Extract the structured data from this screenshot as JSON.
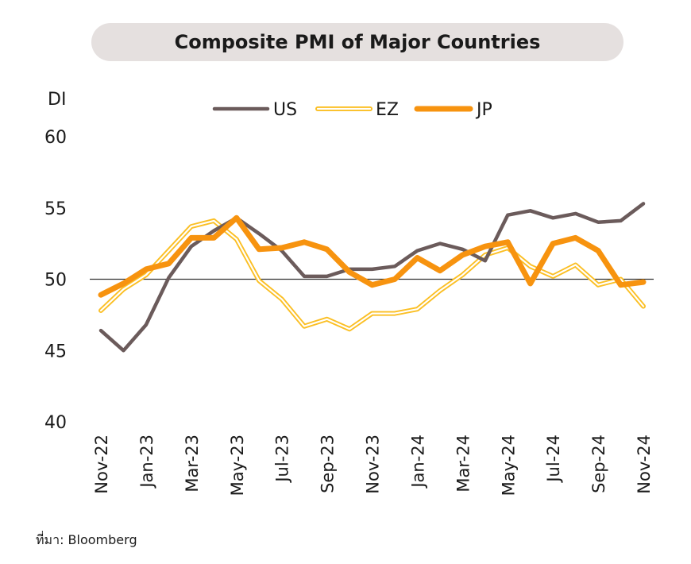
{
  "source_text": "ที่มา: Bloomberg",
  "chart_data": {
    "type": "line",
    "title": "Composite PMI of Major Countries",
    "ylabel": "DI",
    "ylim": [
      40,
      60
    ],
    "yticks": [
      40,
      45,
      50,
      55,
      60
    ],
    "reference_line": 50,
    "legend_position": "top-center",
    "x": [
      "Nov-22",
      "Dec-22",
      "Jan-23",
      "Feb-23",
      "Mar-23",
      "Apr-23",
      "May-23",
      "Jun-23",
      "Jul-23",
      "Aug-23",
      "Sep-23",
      "Oct-23",
      "Nov-23",
      "Dec-23",
      "Jan-24",
      "Feb-24",
      "Mar-24",
      "Apr-24",
      "May-24",
      "Jun-24",
      "Jul-24",
      "Aug-24",
      "Sep-24",
      "Oct-24",
      "Nov-24"
    ],
    "xtick_labels": [
      "Nov-22",
      "Jan-23",
      "Mar-23",
      "May-23",
      "Jul-23",
      "Sep-23",
      "Nov-23",
      "Jan-24",
      "Mar-24",
      "May-24",
      "Jul-24",
      "Sep-24",
      "Nov-24"
    ],
    "series": [
      {
        "name": "US",
        "color": "#6b5b5b",
        "style": "solid",
        "values": [
          46.4,
          45.0,
          46.8,
          50.1,
          52.3,
          53.4,
          54.3,
          53.2,
          52.0,
          50.2,
          50.2,
          50.7,
          50.7,
          50.9,
          52.0,
          52.5,
          52.1,
          51.3,
          54.5,
          54.8,
          54.3,
          54.6,
          54.0,
          54.1,
          55.3
        ]
      },
      {
        "name": "EZ",
        "color": "#fbbf24",
        "style": "double",
        "values": [
          47.8,
          49.3,
          50.3,
          52.0,
          53.7,
          54.1,
          52.8,
          49.9,
          48.6,
          46.7,
          47.2,
          46.5,
          47.6,
          47.6,
          47.9,
          49.2,
          50.3,
          51.7,
          52.2,
          50.9,
          50.2,
          51.0,
          49.6,
          50.0,
          48.1
        ]
      },
      {
        "name": "JP",
        "color": "#f7930f",
        "style": "thick",
        "values": [
          48.9,
          49.7,
          50.7,
          51.1,
          52.9,
          52.9,
          54.3,
          52.1,
          52.2,
          52.6,
          52.1,
          50.5,
          49.6,
          50.0,
          51.5,
          50.6,
          51.7,
          52.3,
          52.6,
          49.7,
          52.5,
          52.9,
          52.0,
          49.6,
          49.8
        ]
      }
    ]
  }
}
